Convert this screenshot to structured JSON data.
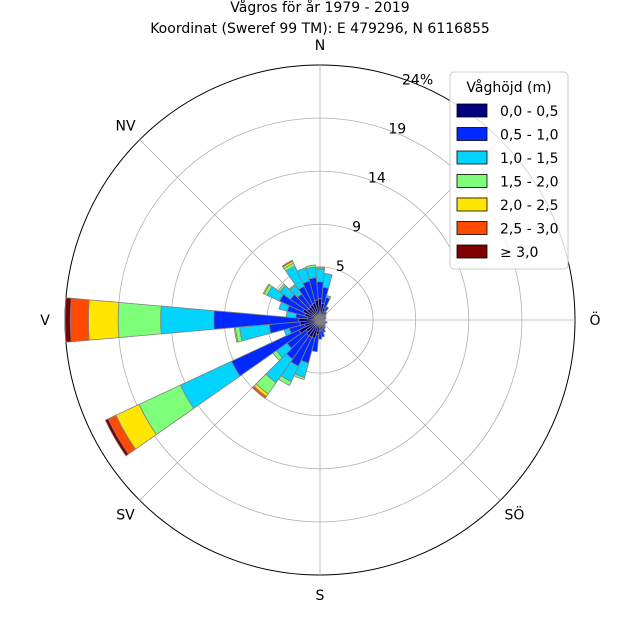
{
  "chart_data": {
    "type": "windrose",
    "title": "Vågros för år 1979 - 2019",
    "subtitle": "Koordinat (Sweref 99 TM): E 479296, N 6116855",
    "directions": [
      {
        "label": "N",
        "angle": 0
      },
      {
        "label": "NV",
        "angle": 315
      },
      {
        "label": "V",
        "angle": 270
      },
      {
        "label": "SV",
        "angle": 225
      },
      {
        "label": "S",
        "angle": 180
      },
      {
        "label": "SÖ",
        "angle": 135
      },
      {
        "label": "Ö",
        "angle": 90
      }
    ],
    "rings": [
      5,
      9,
      14,
      19,
      24
    ],
    "ring_labels": [
      "5",
      "9",
      "14",
      "19",
      "24%"
    ],
    "rmax": 24,
    "grid": true,
    "sector_width_deg": 10,
    "legend": {
      "title": "Våghöjd (m)",
      "position": "top-right",
      "bins": [
        {
          "label": "0,0 - 0,5",
          "color": "#00007f"
        },
        {
          "label": "0,5 - 1,0",
          "color": "#0028ff"
        },
        {
          "label": "1,0 - 1,5",
          "color": "#00d4ff"
        },
        {
          "label": "1,5 - 2,0",
          "color": "#7dff7a"
        },
        {
          "label": "2,0 - 2,5",
          "color": "#ffe500"
        },
        {
          "label": "2,5 - 3,0",
          "color": "#ff4a00"
        },
        {
          "label": "≥ 3,0",
          "color": "#7f0000"
        }
      ]
    },
    "sectors": [
      {
        "direction": 0,
        "cumulative": [
          2.0,
          3.6,
          4.8,
          4.9,
          5.0
        ]
      },
      {
        "direction": 10,
        "cumulative": [
          1.6,
          3.1,
          4.4
        ]
      },
      {
        "direction": 20,
        "cumulative": [
          1.2,
          2.2,
          2.4
        ]
      },
      {
        "direction": 30,
        "cumulative": [
          0.9,
          1.4
        ]
      },
      {
        "direction": 40,
        "cumulative": [
          0.6,
          0.9
        ]
      },
      {
        "direction": 50,
        "cumulative": [
          0.5,
          0.7
        ]
      },
      {
        "direction": 60,
        "cumulative": [
          0.4,
          0.6
        ]
      },
      {
        "direction": 70,
        "cumulative": [
          0.4,
          0.6
        ]
      },
      {
        "direction": 80,
        "cumulative": [
          0.3,
          0.5
        ]
      },
      {
        "direction": 90,
        "cumulative": [
          0.3,
          0.4
        ]
      },
      {
        "direction": 100,
        "cumulative": [
          0.3,
          0.5
        ]
      },
      {
        "direction": 110,
        "cumulative": [
          0.4,
          0.7
        ]
      },
      {
        "direction": 120,
        "cumulative": [
          0.4,
          0.6
        ]
      },
      {
        "direction": 130,
        "cumulative": [
          0.4,
          0.6
        ]
      },
      {
        "direction": 140,
        "cumulative": [
          0.5,
          0.7
        ]
      },
      {
        "direction": 150,
        "cumulative": [
          0.5,
          0.9
        ]
      },
      {
        "direction": 160,
        "cumulative": [
          0.7,
          1.2
        ]
      },
      {
        "direction": 170,
        "cumulative": [
          0.9,
          1.6
        ]
      },
      {
        "direction": 180,
        "cumulative": [
          1.0,
          1.8
        ]
      },
      {
        "direction": 190,
        "cumulative": [
          1.4,
          3.0
        ]
      },
      {
        "direction": 200,
        "cumulative": [
          1.8,
          4.2,
          5.6,
          5.8
        ]
      },
      {
        "direction": 210,
        "cumulative": [
          1.8,
          4.8,
          6.4,
          6.8
        ]
      },
      {
        "direction": 220,
        "cumulative": [
          1.8,
          4.5,
          7.2,
          8.5,
          8.8,
          9.0
        ]
      },
      {
        "direction": 230,
        "cumulative": [
          1.6,
          3.8,
          5.0,
          5.4
        ]
      },
      {
        "direction": 240,
        "cumulative": [
          2.2,
          9.2,
          14.5,
          18.8,
          21.2,
          22.0,
          22.3
        ]
      },
      {
        "direction": 250,
        "cumulative": [
          1.5,
          3.0,
          3.5
        ]
      },
      {
        "direction": 260,
        "cumulative": [
          1.9,
          4.8,
          7.6,
          8.0,
          8.1
        ]
      },
      {
        "direction": 270,
        "cumulative": [
          2.0,
          10.0,
          15.0,
          19.0,
          21.8,
          23.5,
          24.0
        ]
      },
      {
        "direction": 280,
        "cumulative": [
          1.2,
          2.3,
          3.2
        ]
      },
      {
        "direction": 290,
        "cumulative": [
          1.5,
          3.2,
          4.0
        ]
      },
      {
        "direction": 300,
        "cumulative": [
          1.8,
          4.2,
          5.5,
          5.8,
          5.9
        ]
      },
      {
        "direction": 310,
        "cumulative": [
          1.5,
          3.4,
          4.6,
          4.8
        ]
      },
      {
        "direction": 320,
        "cumulative": [
          1.5,
          3.0,
          4.0,
          4.1
        ]
      },
      {
        "direction": 330,
        "cumulative": [
          1.6,
          3.5,
          5.6,
          5.9,
          6.1,
          6.2
        ]
      },
      {
        "direction": 340,
        "cumulative": [
          1.7,
          3.8,
          5.1
        ]
      },
      {
        "direction": 350,
        "cumulative": [
          1.9,
          4.0,
          5.0,
          5.2
        ]
      }
    ]
  }
}
